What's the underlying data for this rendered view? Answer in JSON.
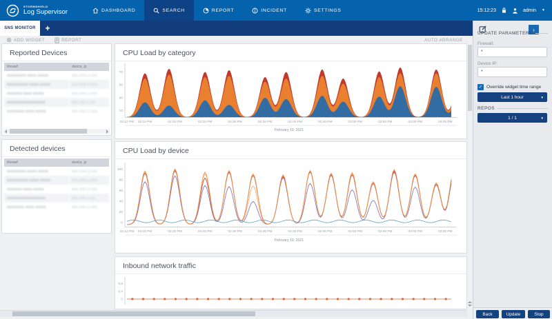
{
  "topnav": {
    "brand_small": "STORMSHIELD",
    "brand": "Log Supervisor",
    "time": "15:12:23",
    "user": "admin",
    "items": [
      {
        "label": "DASHBOARD"
      },
      {
        "label": "SEARCH"
      },
      {
        "label": "REPORT"
      },
      {
        "label": "INCIDENT"
      },
      {
        "label": "SETTINGS"
      }
    ]
  },
  "tabs": {
    "active_label": "SNS MONITOR",
    "add_label": "+"
  },
  "toolbar": {
    "add_widget": "ADD WIDGET",
    "report": "REPORT",
    "auto_arrange": "AUTO ARRANGE"
  },
  "device_panels": [
    {
      "title": "Reported Devices",
      "columns": [
        "firewall",
        "device_ip"
      ],
      "rows": [
        {
          "firewall": "xxxxxxxxx-xxxx-xxxxx",
          "device_ip": "xxx.xxx.x.xxx"
        },
        {
          "firewall": "xxxxxxxxxx-xxxx-xxxxx",
          "device_ip": "xxx.xxx.x.xxx"
        },
        {
          "firewall": "xxxxxxx-xxxx-xxxxx",
          "device_ip": "xxx.xxx.x.xxx"
        },
        {
          "firewall": "xxxxxxxxxxxxxxxxxx",
          "device_ip": "xxx.xxx.x.xx"
        },
        {
          "firewall": "xxxxxxxx-xxxx-xxxxx",
          "device_ip": "xxx.xxx.x.xxx"
        }
      ]
    },
    {
      "title": "Detected devices",
      "columns": [
        "firewall",
        "device_ip"
      ],
      "rows": [
        {
          "firewall": "xxxxxxxxx-xxxx-xxxxx",
          "device_ip": "xxx.xxx.x.xxx"
        },
        {
          "firewall": "xxxxxxxxxx-xxxx-xxxxx",
          "device_ip": "xxx.xxx.x.xxx"
        },
        {
          "firewall": "xxxxxxx-xxxx-xxxxx",
          "device_ip": "xxx.xxx.x.xxx"
        },
        {
          "firewall": "xxxxxxxxxxxxxxxxxx",
          "device_ip": "xxx.xxx.x.xx"
        },
        {
          "firewall": "xxxxxxxx-xxxx-xxxxx",
          "device_ip": "xxx.xxx.x.xxx"
        }
      ]
    }
  ],
  "sidebar": {
    "section_title": "UPDATE PARAMETERS",
    "firewall_label": "Firewall:",
    "firewall_value": "*",
    "device_ip_label": "Device IP:",
    "device_ip_value": "*",
    "override_label": "Override widget time range",
    "override_checked": true,
    "time_range_value": "Last 1 hour",
    "repos_label": "REPOS",
    "repos_value": "1 / 1",
    "back_label": "Back",
    "update_label": "Update",
    "stop_label": "Stop"
  },
  "chart_data": [
    {
      "type": "area",
      "title": "CPU Load by category",
      "xlabel_date": "February 10, 2021",
      "x_range_minutes": [
        0,
        54
      ],
      "x_ticks": [
        {
          "t": 0,
          "label": "02:12 PM"
        },
        {
          "t": 3,
          "label": "02:15 PM"
        },
        {
          "t": 8,
          "label": "02:20 PM"
        },
        {
          "t": 13,
          "label": "02:25 PM"
        },
        {
          "t": 18,
          "label": "02:30 PM"
        },
        {
          "t": 23,
          "label": "02:35 PM"
        },
        {
          "t": 28,
          "label": "02:40 PM"
        },
        {
          "t": 33,
          "label": "02:45 PM"
        },
        {
          "t": 38,
          "label": "02:50 PM"
        },
        {
          "t": 43,
          "label": "02:55 PM"
        },
        {
          "t": 48,
          "label": "03:00 PM"
        },
        {
          "t": 53,
          "label": "03:05 PM"
        }
      ],
      "y_ticks": [
        10,
        30,
        50,
        70
      ],
      "ylim": [
        0,
        80
      ],
      "stack_colors": {
        "bottom": "#336ba3",
        "middle": "#e8802f",
        "top": "#c13a2c"
      },
      "peak_sigma_min": 1.25,
      "peaks": [
        {
          "c": 3,
          "bottom": 23,
          "middle": 60,
          "total": 68
        },
        {
          "c": 7,
          "bottom": 18,
          "middle": 66,
          "total": 75
        },
        {
          "c": 13,
          "bottom": 26,
          "middle": 62,
          "total": 70
        },
        {
          "c": 17,
          "bottom": 19,
          "middle": 64,
          "total": 73
        },
        {
          "c": 23,
          "bottom": 30,
          "middle": 55,
          "total": 62
        },
        {
          "c": 26.5,
          "bottom": 28,
          "middle": 60,
          "total": 70
        },
        {
          "c": 32.5,
          "bottom": 33,
          "middle": 64,
          "total": 74
        },
        {
          "c": 36,
          "bottom": 24,
          "middle": 52,
          "total": 60
        },
        {
          "c": 42,
          "bottom": 32,
          "middle": 62,
          "total": 71
        },
        {
          "c": 45.5,
          "bottom": 48,
          "middle": 68,
          "total": 77
        },
        {
          "c": 51.5,
          "bottom": 47,
          "middle": 68,
          "total": 74
        },
        {
          "c": 55.5,
          "bottom": 40,
          "middle": 62,
          "total": 70
        }
      ]
    },
    {
      "type": "line",
      "title": "CPU Load by device",
      "xlabel_date": "February 10, 2021",
      "x_range_minutes": [
        0,
        54
      ],
      "x_ticks": [
        {
          "t": 0,
          "label": "02:12 PM"
        },
        {
          "t": 3,
          "label": "02:15 PM"
        },
        {
          "t": 8,
          "label": "02:20 PM"
        },
        {
          "t": 13,
          "label": "02:25 PM"
        },
        {
          "t": 18,
          "label": "02:30 PM"
        },
        {
          "t": 23,
          "label": "02:35 PM"
        },
        {
          "t": 28,
          "label": "02:40 PM"
        },
        {
          "t": 33,
          "label": "02:45 PM"
        },
        {
          "t": 38,
          "label": "02:50 PM"
        },
        {
          "t": 43,
          "label": "02:55 PM"
        },
        {
          "t": 48,
          "label": "03:00 PM"
        },
        {
          "t": 53,
          "label": "03:05 PM"
        }
      ],
      "y_ticks": [
        0,
        20,
        40,
        60,
        80,
        100
      ],
      "ylim": [
        -8,
        108
      ],
      "valley_level": -4,
      "peak_sigma_min": 1.1,
      "peak_centers": [
        3,
        8,
        13,
        17,
        21,
        26,
        30.5,
        34,
        37.5,
        41,
        44.5,
        48,
        51.5,
        54.5
      ],
      "series": [
        {
          "color": "#f3b27e",
          "peak_values": [
            94,
            99,
            91,
            95,
            68,
            87,
            96,
            90,
            91,
            74,
            97,
            89,
            72,
            98
          ]
        },
        {
          "color": "#8a7ab8",
          "peak_values": [
            76,
            87,
            69,
            67,
            39,
            84,
            73,
            89,
            61,
            41,
            94,
            66,
            71,
            91
          ]
        },
        {
          "color": "#c8503c",
          "peak_values": [
            92,
            97,
            83,
            94,
            88,
            86,
            95,
            89,
            89,
            73,
            96,
            88,
            71,
            96
          ]
        },
        {
          "color": "#f0994f",
          "peak_values": [
            96,
            100,
            94,
            97,
            91,
            89,
            97,
            92,
            93,
            76,
            99,
            91,
            74,
            100
          ]
        }
      ],
      "flat_series": {
        "color": "#5f9ec2",
        "base": 2,
        "amplitude": 2.5,
        "period_min": 4.3
      }
    },
    {
      "type": "scatter-line",
      "title": "Inbound network traffic",
      "y_ticks": [
        0,
        0.4,
        0.8
      ],
      "ylim": [
        0,
        1
      ],
      "value": 0,
      "marker_count": 30,
      "color": "#d9663c"
    }
  ]
}
